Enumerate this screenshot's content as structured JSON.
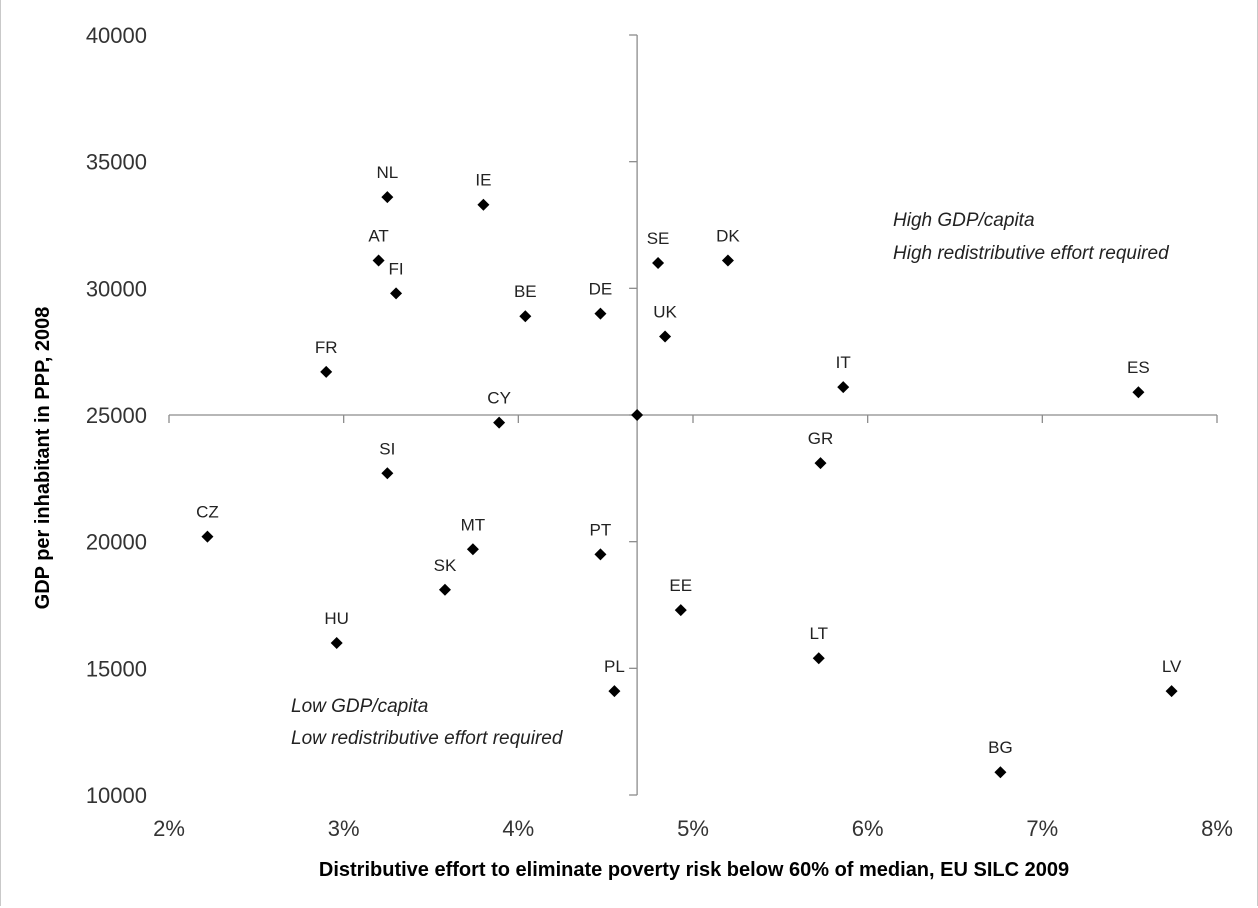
{
  "chart_data": {
    "type": "scatter",
    "xlabel": "Distributive effort to eliminate poverty risk below 60% of median, EU SILC 2009",
    "ylabel": "GDP per inhabitant in PPP, 2008",
    "xlim": [
      2,
      8
    ],
    "ylim": [
      10000,
      40000
    ],
    "x_unit": "%",
    "x_ticks": [
      "2%",
      "3%",
      "4%",
      "5%",
      "6%",
      "7%",
      "8%"
    ],
    "y_ticks": [
      "10000",
      "15000",
      "20000",
      "25000",
      "30000",
      "35000",
      "40000"
    ],
    "crosshair": {
      "x": 4.68,
      "y": 25000
    },
    "marker_color": "#000000",
    "grid": false,
    "points": [
      {
        "label": "NL",
        "x": 3.25,
        "y": 33600
      },
      {
        "label": "IE",
        "x": 3.8,
        "y": 33300
      },
      {
        "label": "AT",
        "x": 3.2,
        "y": 31100
      },
      {
        "label": "FI",
        "x": 3.3,
        "y": 29800
      },
      {
        "label": "SE",
        "x": 4.8,
        "y": 31000
      },
      {
        "label": "DK",
        "x": 5.2,
        "y": 31100
      },
      {
        "label": "BE",
        "x": 4.04,
        "y": 28900
      },
      {
        "label": "DE",
        "x": 4.47,
        "y": 29000
      },
      {
        "label": "UK",
        "x": 4.84,
        "y": 28100
      },
      {
        "label": "FR",
        "x": 2.9,
        "y": 26700
      },
      {
        "label": "IT",
        "x": 5.86,
        "y": 26100
      },
      {
        "label": "ES",
        "x": 7.55,
        "y": 25900
      },
      {
        "label": "CY",
        "x": 3.89,
        "y": 24700
      },
      {
        "label": "",
        "x": 4.68,
        "y": 25000
      },
      {
        "label": "GR",
        "x": 5.73,
        "y": 23100
      },
      {
        "label": "SI",
        "x": 3.25,
        "y": 22700
      },
      {
        "label": "CZ",
        "x": 2.22,
        "y": 20200
      },
      {
        "label": "MT",
        "x": 3.74,
        "y": 19700
      },
      {
        "label": "PT",
        "x": 4.47,
        "y": 19500
      },
      {
        "label": "SK",
        "x": 3.58,
        "y": 18100
      },
      {
        "label": "EE",
        "x": 4.93,
        "y": 17300
      },
      {
        "label": "HU",
        "x": 2.96,
        "y": 16000
      },
      {
        "label": "LT",
        "x": 5.72,
        "y": 15400
      },
      {
        "label": "PL",
        "x": 4.55,
        "y": 14100
      },
      {
        "label": "LV",
        "x": 7.74,
        "y": 14100
      },
      {
        "label": "BG",
        "x": 6.76,
        "y": 10900
      }
    ],
    "annotations": [
      {
        "position": "upper-right",
        "lines": [
          "High GDP/capita",
          "High redistributive effort required"
        ]
      },
      {
        "position": "lower-left",
        "lines": [
          "Low GDP/capita",
          "Low redistributive effort required"
        ]
      }
    ]
  }
}
